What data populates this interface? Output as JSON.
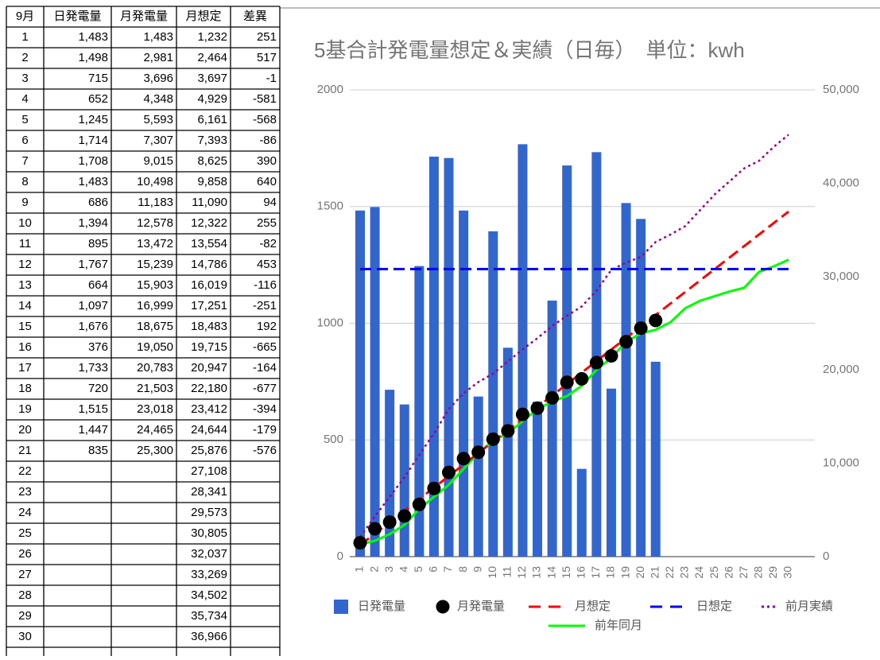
{
  "table": {
    "header": [
      "9月",
      "日発電量",
      "月発電量",
      "月想定",
      "差異"
    ],
    "rows": [
      [
        "1",
        "1,483",
        "1,483",
        "1,232",
        "251"
      ],
      [
        "2",
        "1,498",
        "2,981",
        "2,464",
        "517"
      ],
      [
        "3",
        "715",
        "3,696",
        "3,697",
        "-1"
      ],
      [
        "4",
        "652",
        "4,348",
        "4,929",
        "-581"
      ],
      [
        "5",
        "1,245",
        "5,593",
        "6,161",
        "-568"
      ],
      [
        "6",
        "1,714",
        "7,307",
        "7,393",
        "-86"
      ],
      [
        "7",
        "1,708",
        "9,015",
        "8,625",
        "390"
      ],
      [
        "8",
        "1,483",
        "10,498",
        "9,858",
        "640"
      ],
      [
        "9",
        "686",
        "11,183",
        "11,090",
        "94"
      ],
      [
        "10",
        "1,394",
        "12,578",
        "12,322",
        "255"
      ],
      [
        "11",
        "895",
        "13,472",
        "13,554",
        "-82"
      ],
      [
        "12",
        "1,767",
        "15,239",
        "14,786",
        "453"
      ],
      [
        "13",
        "664",
        "15,903",
        "16,019",
        "-116"
      ],
      [
        "14",
        "1,097",
        "16,999",
        "17,251",
        "-251"
      ],
      [
        "15",
        "1,676",
        "18,675",
        "18,483",
        "192"
      ],
      [
        "16",
        "376",
        "19,050",
        "19,715",
        "-665"
      ],
      [
        "17",
        "1,733",
        "20,783",
        "20,947",
        "-164"
      ],
      [
        "18",
        "720",
        "21,503",
        "22,180",
        "-677"
      ],
      [
        "19",
        "1,515",
        "23,018",
        "23,412",
        "-394"
      ],
      [
        "20",
        "1,447",
        "24,465",
        "24,644",
        "-179"
      ],
      [
        "21",
        "835",
        "25,300",
        "25,876",
        "-576"
      ],
      [
        "22",
        null,
        null,
        "27,108",
        null
      ],
      [
        "23",
        null,
        null,
        "28,341",
        null
      ],
      [
        "24",
        null,
        null,
        "29,573",
        null
      ],
      [
        "25",
        null,
        null,
        "30,805",
        null
      ],
      [
        "26",
        null,
        null,
        "32,037",
        null
      ],
      [
        "27",
        null,
        null,
        "33,269",
        null
      ],
      [
        "28",
        null,
        null,
        "34,502",
        null
      ],
      [
        "29",
        null,
        null,
        "35,734",
        null
      ],
      [
        "30",
        null,
        null,
        "36,966",
        null
      ]
    ]
  },
  "chart_data": {
    "type": "bar",
    "title": "5基合計発電量想定＆実績（日毎）　単位：kwh",
    "categories": [
      "1",
      "2",
      "3",
      "4",
      "5",
      "6",
      "7",
      "8",
      "9",
      "10",
      "11",
      "12",
      "13",
      "14",
      "15",
      "16",
      "17",
      "18",
      "19",
      "20",
      "21",
      "22",
      "23",
      "24",
      "25",
      "26",
      "27",
      "28",
      "29",
      "30"
    ],
    "ylim": [
      0,
      2000
    ],
    "yticks": [
      0,
      500,
      1000,
      1500,
      2000
    ],
    "y2lim": [
      0,
      50000
    ],
    "y2ticks": [
      0,
      {
        "value": 10000,
        "label": "10,000"
      },
      {
        "value": 20000,
        "label": "20,000"
      },
      {
        "value": 30000,
        "label": "30,000"
      },
      {
        "value": 40000,
        "label": "40,000"
      },
      {
        "value": 50000,
        "label": "50,000"
      }
    ],
    "grid": true,
    "series": [
      {
        "name": "日発電量",
        "type": "bar",
        "color": "#3366cc",
        "values": [
          1483,
          1498,
          715,
          652,
          1245,
          1714,
          1708,
          1483,
          686,
          1394,
          895,
          1767,
          664,
          1097,
          1676,
          376,
          1733,
          720,
          1515,
          1447,
          835,
          null,
          null,
          null,
          null,
          null,
          null,
          null,
          null,
          null
        ]
      },
      {
        "name": "月発電量",
        "type": "scatter",
        "axis": "y2",
        "color": "#000000",
        "values": [
          1483,
          2981,
          3696,
          4348,
          5593,
          7307,
          9015,
          10498,
          11183,
          12578,
          13472,
          15239,
          15903,
          16999,
          18675,
          19050,
          20783,
          21503,
          23018,
          24465,
          25300,
          null,
          null,
          null,
          null,
          null,
          null,
          null,
          null,
          null
        ]
      },
      {
        "name": "月想定",
        "type": "line",
        "axis": "y2",
        "color": "#ff0000",
        "dash": "dashed",
        "values": [
          1232,
          2464,
          3697,
          4929,
          6161,
          7393,
          8625,
          9858,
          11090,
          12322,
          13554,
          14786,
          16019,
          17251,
          18483,
          19715,
          20947,
          22180,
          23412,
          24644,
          25876,
          27108,
          28341,
          29573,
          30805,
          32037,
          33269,
          34502,
          35734,
          36966
        ]
      },
      {
        "name": "日想定",
        "type": "line",
        "color": "#0000ff",
        "dash": "dashed",
        "values": [
          1232,
          1232,
          1232,
          1232,
          1232,
          1232,
          1232,
          1232,
          1232,
          1232,
          1232,
          1232,
          1232,
          1232,
          1232,
          1232,
          1232,
          1232,
          1232,
          1232,
          1232,
          1232,
          1232,
          1232,
          1232,
          1232,
          1232,
          1232,
          1232,
          1232
        ]
      },
      {
        "name": "前月実績",
        "type": "line",
        "axis": "y2",
        "color": "#990099",
        "dash": "dotted",
        "values": [
          2100,
          4300,
          6400,
          8500,
          10900,
          13200,
          15800,
          17500,
          18700,
          19600,
          20900,
          22200,
          23400,
          24700,
          25800,
          26800,
          28500,
          30700,
          31500,
          32100,
          33700,
          34500,
          35400,
          37100,
          38800,
          40200,
          41600,
          42400,
          43900,
          45200
        ]
      },
      {
        "name": "前年同月",
        "type": "line",
        "axis": "y2",
        "color": "#00ff00",
        "dash": "solid",
        "values": [
          1300,
          1700,
          2400,
          3400,
          5100,
          6400,
          7700,
          9400,
          11100,
          12400,
          13200,
          14500,
          15800,
          16600,
          17200,
          18300,
          20000,
          21300,
          23000,
          23900,
          24300,
          25100,
          26600,
          27400,
          27900,
          28400,
          28800,
          30500,
          31100,
          31800
        ]
      }
    ]
  }
}
